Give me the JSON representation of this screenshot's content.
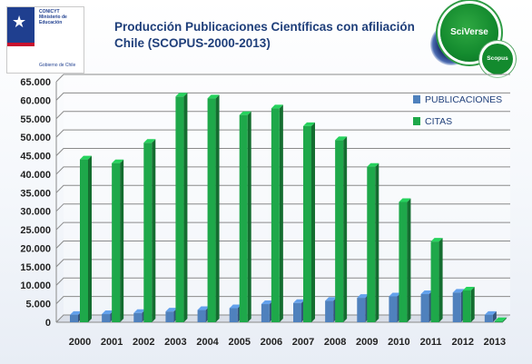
{
  "header": {
    "logo": {
      "org_text": "CONICYT Ministerio de Educación",
      "gov_text": "Gobierno de Chile"
    },
    "title_line1": "Producción Publicaciones Científicas con afiliación",
    "title_line2": "Chile (SCOPUS-2000-2013)",
    "badges": {
      "main": "SciVerse",
      "small": "Scopus"
    }
  },
  "chart_data": {
    "type": "bar",
    "title": "Producción Publicaciones Científicas con afiliación Chile (SCOPUS-2000-2013)",
    "xlabel": "",
    "ylabel": "",
    "categories": [
      "2000",
      "2001",
      "2002",
      "2003",
      "2004",
      "2005",
      "2006",
      "2007",
      "2008",
      "2009",
      "2010",
      "2011",
      "2012",
      "2013"
    ],
    "series": [
      {
        "name": "PUBLICACIONES",
        "color": "#4f81bd",
        "values": [
          2000,
          2200,
          2500,
          2900,
          3300,
          3800,
          4900,
          5200,
          5800,
          6600,
          7000,
          7600,
          8000,
          2000
        ]
      },
      {
        "name": "CITAS",
        "color": "#1ea84a",
        "values": [
          44000,
          43000,
          48500,
          61000,
          60500,
          56000,
          57800,
          53000,
          49200,
          42000,
          32500,
          21800,
          8600,
          300
        ]
      }
    ],
    "ylim": [
      0,
      65000
    ],
    "yticks": [
      "0",
      "5.000",
      "10.000",
      "15.000",
      "20.000",
      "25.000",
      "30.000",
      "35.000",
      "40.000",
      "45.000",
      "50.000",
      "55.000",
      "60.000",
      "65.000"
    ],
    "grid": true,
    "legend_position": "top-right"
  }
}
